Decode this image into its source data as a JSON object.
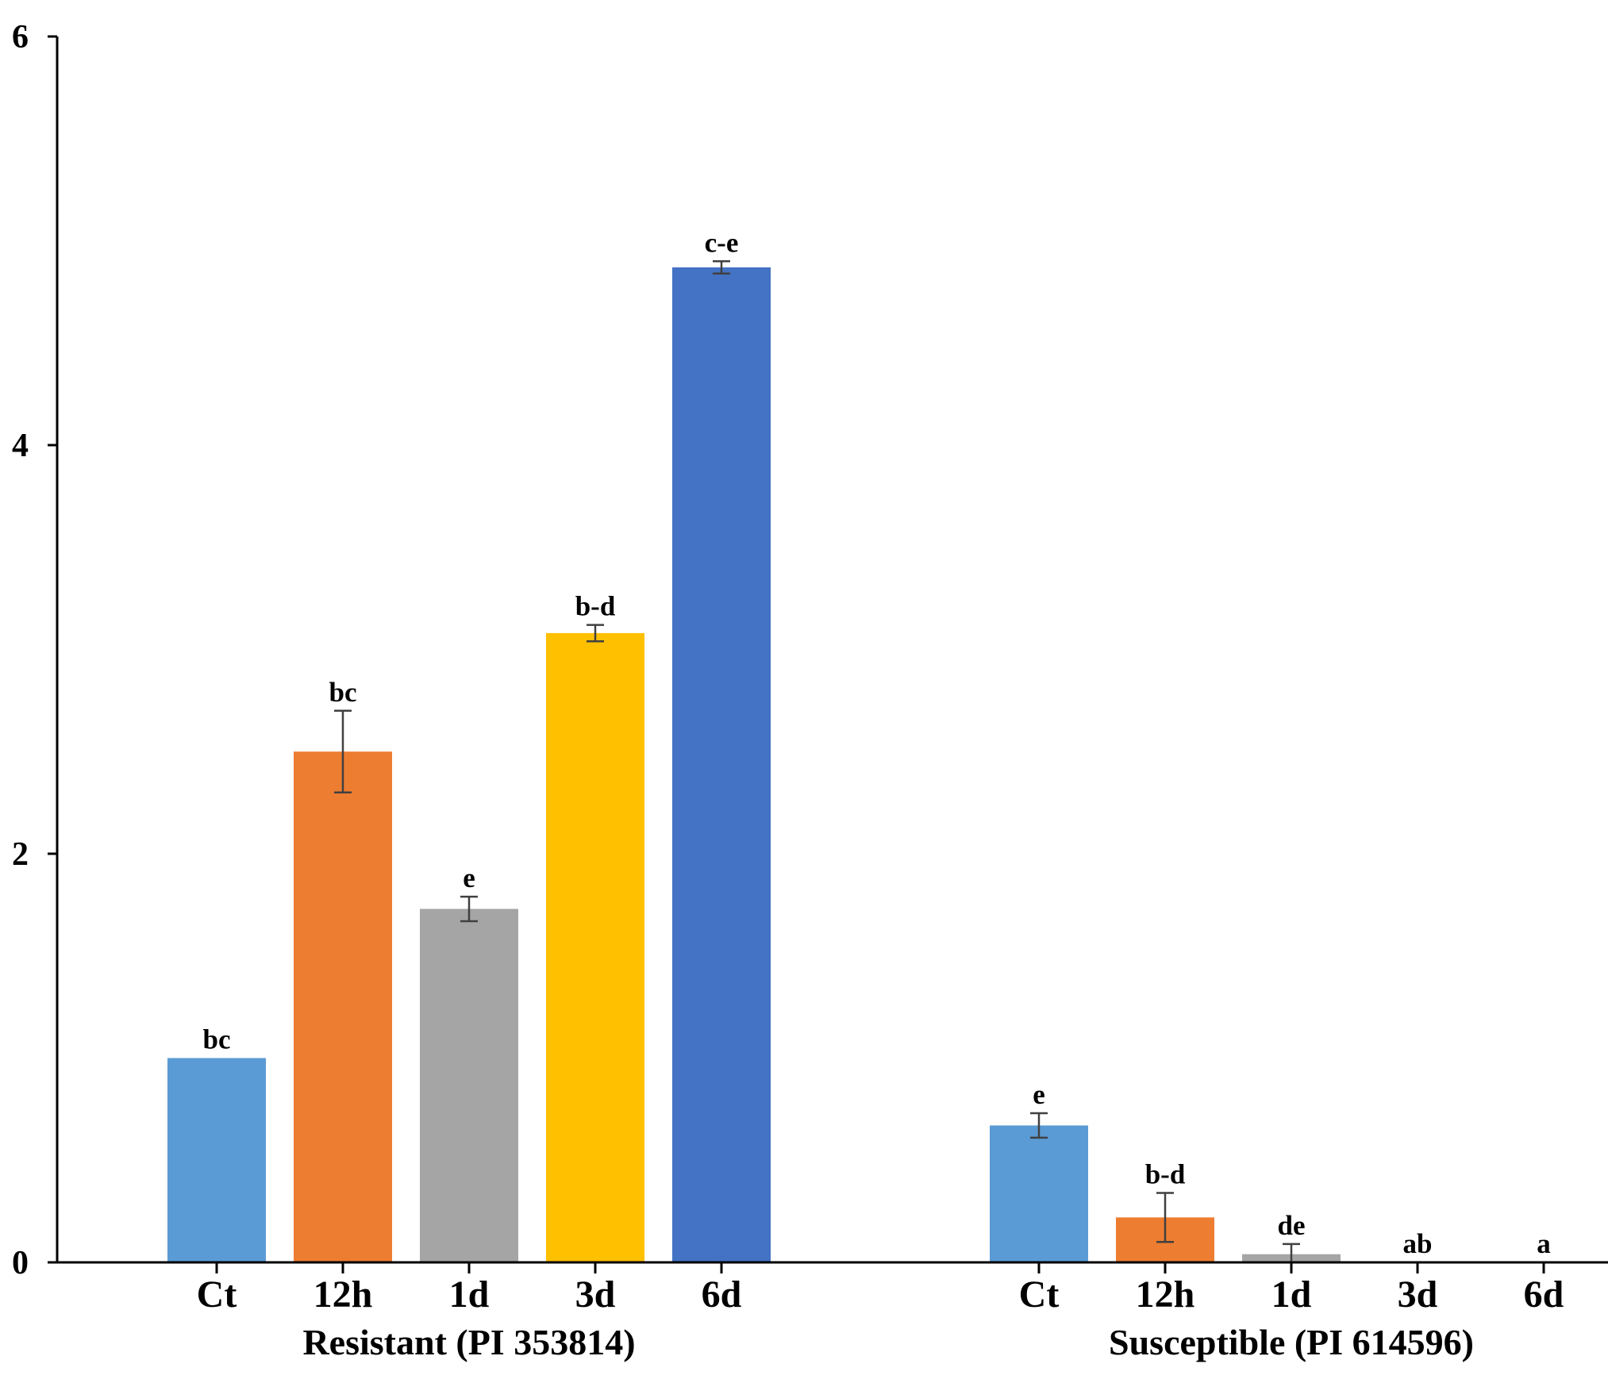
{
  "chart_data": {
    "type": "bar",
    "title": "",
    "xlabel": "",
    "ylabel": "",
    "ylim": [
      0,
      6
    ],
    "yticks": [
      0,
      2,
      4,
      6
    ],
    "grid": false,
    "legend": "none",
    "colors": {
      "Ct": "#5b9bd5",
      "12h": "#ed7d31",
      "1d": "#a5a5a5",
      "3d": "#ffc000",
      "6d": "#4472c4",
      "axis": "#000000",
      "error_bar": "#404040"
    },
    "groups": [
      {
        "name": "Resistant (PI 353814)",
        "bars": [
          {
            "category": "Ct",
            "value": 1.0,
            "error": 0.0,
            "sig": "bc"
          },
          {
            "category": "12h",
            "value": 2.5,
            "error": 0.2,
            "sig": "bc"
          },
          {
            "category": "1d",
            "value": 1.73,
            "error": 0.06,
            "sig": "e"
          },
          {
            "category": "3d",
            "value": 3.08,
            "error": 0.04,
            "sig": "b-d"
          },
          {
            "category": "6d",
            "value": 4.87,
            "error": 0.03,
            "sig": "c-e"
          }
        ]
      },
      {
        "name": "Susceptible (PI 614596)",
        "bars": [
          {
            "category": "Ct",
            "value": 0.67,
            "error": 0.06,
            "sig": "e"
          },
          {
            "category": "12h",
            "value": 0.22,
            "error": 0.12,
            "sig": "b-d"
          },
          {
            "category": "1d",
            "value": 0.04,
            "error": 0.05,
            "sig": "de"
          },
          {
            "category": "3d",
            "value": 0.0,
            "error": 0.0,
            "sig": "ab"
          },
          {
            "category": "6d",
            "value": 0.0,
            "error": 0.0,
            "sig": "a"
          }
        ]
      }
    ]
  }
}
